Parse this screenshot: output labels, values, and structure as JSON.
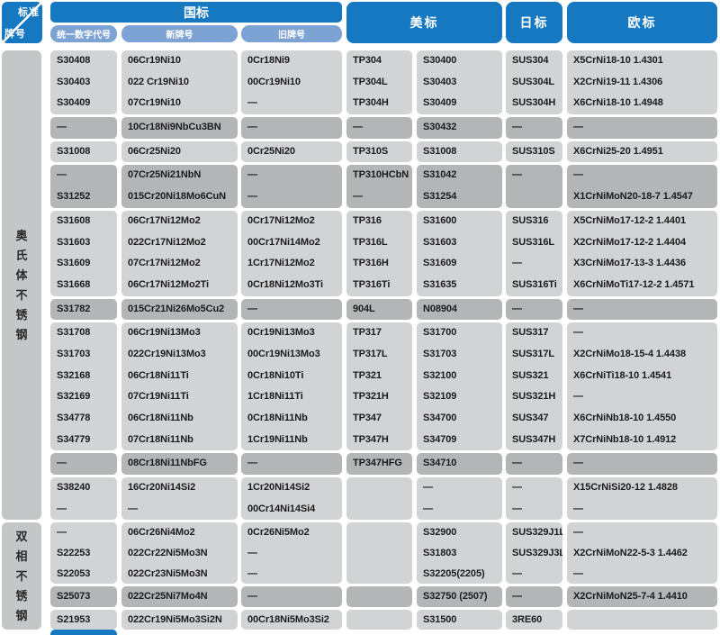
{
  "corner": {
    "top_label": "标准",
    "bottom_label": "牌号"
  },
  "headers": {
    "gb": "国标",
    "us": "美标",
    "jp": "日标",
    "eu": "欧标",
    "gb_subheaders": [
      "统一数字代号",
      "新牌号",
      "旧牌号"
    ]
  },
  "colors": {
    "header_blue": "#1578c0",
    "subheader_blue": "#7da2d4",
    "row_light": "#d2d3d5",
    "row_dark": "#b3b5b7",
    "sidebar_gray": "#c5c6c8",
    "text": "#1b1b1b"
  },
  "sections": [
    {
      "label": "奥氏体不锈钢",
      "rows": [
        {
          "shade": "light",
          "cells": [
            "S30408",
            "06Cr19Ni10",
            "0Cr18Ni9",
            "TP304",
            "S30400",
            "SUS304",
            "X5CrNi18-10 1.4301"
          ]
        },
        {
          "shade": "light",
          "cells": [
            "S30403",
            "022 Cr19Ni10",
            "00Cr19Ni10",
            "TP304L",
            "S30403",
            "SUS304L",
            "X2CrNi19-11 1.4306"
          ]
        },
        {
          "shade": "light",
          "cells": [
            "S30409",
            "07Cr19Ni10",
            "—",
            "TP304H",
            "S30409",
            "SUS304H",
            "X6CrNi18-10 1.4948"
          ]
        },
        {
          "shade": "dark",
          "cells": [
            "—",
            "10Cr18Ni9NbCu3BN",
            "—",
            "—",
            "S30432",
            "—",
            "—"
          ]
        },
        {
          "shade": "light",
          "cells": [
            "S31008",
            "06Cr25Ni20",
            "0Cr25Ni20",
            "TP310S",
            "S31008",
            "SUS310S",
            "X6CrNi25-20 1.4951"
          ]
        },
        {
          "shade": "dark",
          "cells": [
            "—",
            "07Cr25Ni21NbN",
            "—",
            "TP310HCbN",
            "S31042",
            "—",
            "—"
          ]
        },
        {
          "shade": "dark",
          "cells": [
            "S31252",
            "015Cr20Ni18Mo6CuN",
            "—",
            "—",
            "S31254",
            "",
            "X1CrNiMoN20-18-7 1.4547"
          ]
        },
        {
          "shade": "light",
          "cells": [
            "S31608",
            "06Cr17Ni12Mo2",
            "0Cr17Ni12Mo2",
            "TP316",
            "S31600",
            "SUS316",
            "X5CrNiMo17-12-2 1.4401"
          ]
        },
        {
          "shade": "light",
          "cells": [
            "S31603",
            "022Cr17Ni12Mo2",
            "00Cr17Ni14Mo2",
            "TP316L",
            "S31603",
            "SUS316L",
            "X2CrNiMo17-12-2 1.4404"
          ]
        },
        {
          "shade": "light",
          "cells": [
            "S31609",
            "07Cr17Ni12Mo2",
            "1Cr17Ni12Mo2",
            "TP316H",
            "S31609",
            "—",
            "X3CrNiMo17-13-3 1.4436"
          ]
        },
        {
          "shade": "light",
          "cells": [
            "S31668",
            "06Cr17Ni12Mo2Ti",
            "0Cr18Ni12Mo3Ti",
            "TP316Ti",
            "S31635",
            "SUS316Ti",
            "X6CrNiMoTi17-12-2 1.4571"
          ]
        },
        {
          "shade": "dark",
          "cells": [
            "S31782",
            "015Cr21Ni26Mo5Cu2",
            "—",
            "904L",
            "N08904",
            "—",
            "—"
          ]
        },
        {
          "shade": "light",
          "cells": [
            "S31708",
            "06Cr19Ni13Mo3",
            "0Cr19Ni13Mo3",
            "TP317",
            "S31700",
            "SUS317",
            "—"
          ]
        },
        {
          "shade": "light",
          "cells": [
            "S31703",
            "022Cr19Ni13Mo3",
            "00Cr19Ni13Mo3",
            "TP317L",
            "S31703",
            "SUS317L",
            "X2CrNiMo18-15-4 1.4438"
          ]
        },
        {
          "shade": "light",
          "cells": [
            "S32168",
            "06Cr18Ni11Ti",
            "0Cr18Ni10Ti",
            "TP321",
            "S32100",
            "SUS321",
            "X6CrNiTi18-10 1.4541"
          ]
        },
        {
          "shade": "light",
          "cells": [
            "S32169",
            "07Cr19Ni11Ti",
            "1Cr18Ni11Ti",
            "TP321H",
            "S32109",
            "SUS321H",
            "—"
          ]
        },
        {
          "shade": "light",
          "cells": [
            "S34778",
            "06Cr18Ni11Nb",
            "0Cr18Ni11Nb",
            "TP347",
            "S34700",
            "SUS347",
            "X6CrNiNb18-10 1.4550"
          ]
        },
        {
          "shade": "light",
          "cells": [
            "S34779",
            "07Cr18Ni11Nb",
            "1Cr19Ni11Nb",
            "TP347H",
            "S34709",
            "SUS347H",
            "X7CrNiNb18-10 1.4912"
          ]
        },
        {
          "shade": "dark",
          "cells": [
            "—",
            "08Cr18Ni11NbFG",
            "—",
            "TP347HFG",
            "S34710",
            "—",
            "—"
          ]
        },
        {
          "shade": "light",
          "cells": [
            "S38240",
            "16Cr20Ni14Si2",
            "1Cr20Ni14Si2",
            "",
            "—",
            "—",
            "X15CrNiSi20-12 1.4828"
          ]
        },
        {
          "shade": "light",
          "cells": [
            "—",
            "—",
            "00Cr14Ni14Si4",
            "",
            "—",
            "—",
            "—"
          ]
        }
      ]
    },
    {
      "label": "双相不锈钢",
      "rows": [
        {
          "shade": "light",
          "cells": [
            "—",
            "06Cr26Ni4Mo2",
            "0Cr26Ni5Mo2",
            "",
            "S32900",
            "SUS329J1L",
            "—"
          ]
        },
        {
          "shade": "light",
          "cells": [
            "S22253",
            "022Cr22Ni5Mo3N",
            "—",
            "",
            "S31803",
            "SUS329J3L",
            "X2CrNiMoN22-5-3 1.4462"
          ]
        },
        {
          "shade": "light",
          "cells": [
            "S22053",
            "022Cr23Ni5Mo3N",
            "—",
            "",
            "S32205(2205)",
            "—",
            "—"
          ]
        },
        {
          "shade": "dark",
          "cells": [
            "S25073",
            "022Cr25Ni7Mo4N",
            "—",
            "",
            "S32750 (2507)",
            "—",
            "X2CrNiMoN25-7-4 1.4410"
          ]
        },
        {
          "shade": "light",
          "cells": [
            "S21953",
            "022Cr19Ni5Mo3Si2N",
            "00Cr18Ni5Mo3Si2",
            "",
            "S31500",
            "3RE60",
            ""
          ]
        }
      ]
    }
  ]
}
